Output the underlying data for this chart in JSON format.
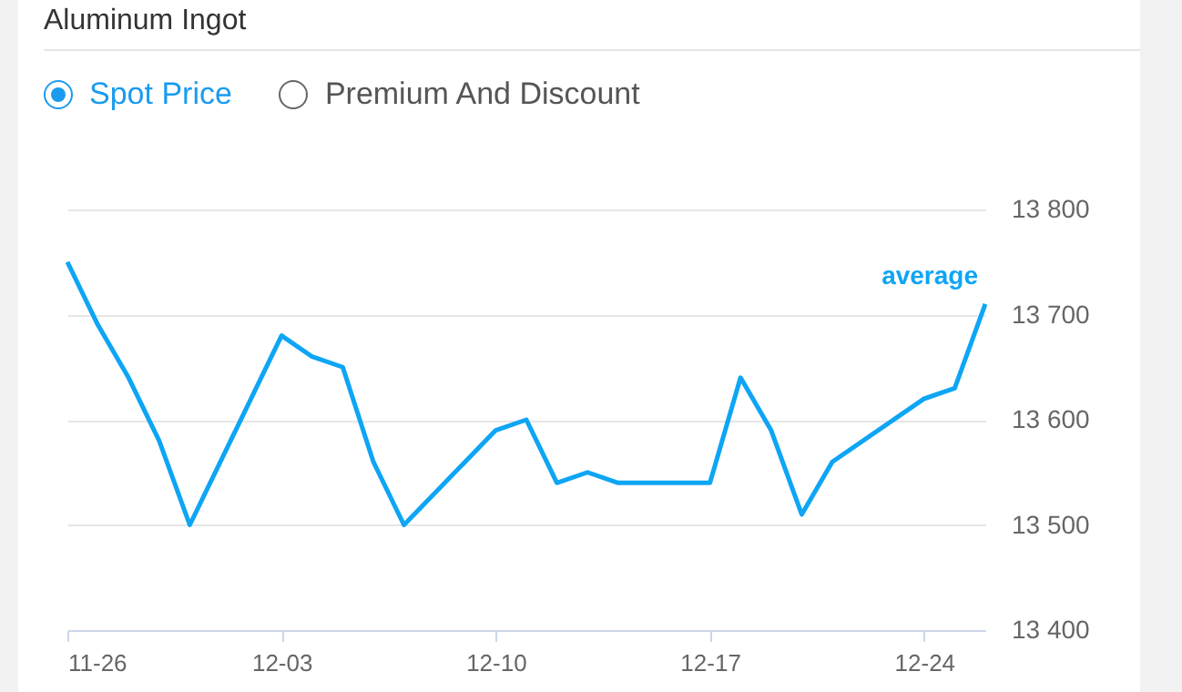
{
  "chart_data": {
    "type": "line",
    "title": "Aluminum Ingot",
    "annotations": [
      "Spot Price",
      "Premium And Discount"
    ],
    "x": [
      "--11-26",
      "--11-27",
      "--11-28",
      "--11-29",
      "--11-30",
      "--12-03",
      "--12-04",
      "--12-05",
      "--12-06",
      "--12-07",
      "--12-10",
      "--12-11",
      "--12-12",
      "--12-13",
      "--12-14",
      "--12-17",
      "--12-18",
      "--12-19",
      "--12-20",
      "--12-21",
      "--12-24",
      "--12-25",
      "--12-26"
    ],
    "series": [
      {
        "name": "average",
        "color": "#0ea5f5",
        "values": [
          13750,
          13690,
          13640,
          13580,
          13500,
          13680,
          13660,
          13650,
          13560,
          13500,
          13590,
          13600,
          13540,
          13550,
          13540,
          13540,
          13640,
          13590,
          13510,
          13560,
          13620,
          13630,
          13710
        ]
      }
    ],
    "xlim": [
      "--11-26",
      "--12-26"
    ],
    "xticks": [
      {
        "value": "--11-26",
        "label": "11-26"
      },
      {
        "value": "--12-03",
        "label": "12-03"
      },
      {
        "value": "--12-10",
        "label": "12-10"
      },
      {
        "value": "--12-17",
        "label": "12-17"
      },
      {
        "value": "--12-24",
        "label": "12-24"
      }
    ],
    "ylim": [
      13400,
      13800
    ],
    "yticks": [
      {
        "value": 13400,
        "label": "13 400"
      },
      {
        "value": 13500,
        "label": "13 500"
      },
      {
        "value": 13600,
        "label": "13 600"
      },
      {
        "value": 13700,
        "label": "13 700"
      },
      {
        "value": 13800,
        "label": "13 800"
      }
    ],
    "grid": "y",
    "marker": "none",
    "line_style": "solid"
  }
}
